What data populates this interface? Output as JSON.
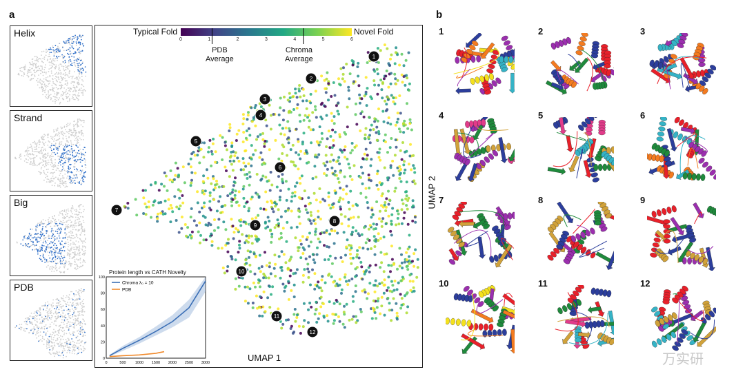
{
  "panel_a_label": "a",
  "panel_b_label": "b",
  "mini_plots": [
    {
      "label": "Helix"
    },
    {
      "label": "Strand"
    },
    {
      "label": "Big"
    },
    {
      "label": "PDB"
    }
  ],
  "colorbar": {
    "left_label": "Typical Fold",
    "right_label": "Novel Fold",
    "ticks": [
      "0",
      "1",
      "2",
      "3",
      "4",
      "5",
      "6"
    ],
    "range": [
      0,
      6
    ],
    "colormap": "viridis"
  },
  "annotations": {
    "pdb_average": "PDB\nAverage",
    "pdb_average_value": 1.1,
    "chroma_average": "Chroma\nAverage",
    "chroma_average_value": 4.3
  },
  "axes": {
    "x_label": "UMAP 1",
    "y_label": "UMAP 2"
  },
  "markers": [
    "1",
    "2",
    "3",
    "4",
    "5",
    "6",
    "7",
    "8",
    "9",
    "10",
    "11",
    "12"
  ],
  "chart_data": {
    "type": "line",
    "title": "Protein length vs CATH Novelty",
    "xlabel": "",
    "ylabel": "",
    "xlim": [
      0,
      3000
    ],
    "ylim": [
      0,
      100
    ],
    "x_ticks": [
      "0",
      "500",
      "1000",
      "1500",
      "2000",
      "2500",
      "3000"
    ],
    "y_ticks": [
      "0",
      "20",
      "40",
      "60",
      "80",
      "100"
    ],
    "series": [
      {
        "name": "Chroma λ₀ = 10",
        "color": "#3b6fb6",
        "x": [
          100,
          500,
          1000,
          1500,
          2000,
          2500,
          3000
        ],
        "y": [
          3,
          12,
          22,
          33,
          45,
          62,
          95
        ],
        "band_lower": [
          2,
          9,
          18,
          28,
          38,
          50,
          82
        ],
        "band_upper": [
          4,
          15,
          26,
          39,
          53,
          72,
          100
        ]
      },
      {
        "name": "PDB",
        "color": "#f08a2c",
        "x": [
          100,
          500,
          1000,
          1500,
          1750
        ],
        "y": [
          2,
          3,
          4,
          6,
          8
        ]
      }
    ]
  },
  "proteins": [
    {
      "num": "1"
    },
    {
      "num": "2"
    },
    {
      "num": "3"
    },
    {
      "num": "4"
    },
    {
      "num": "5"
    },
    {
      "num": "6"
    },
    {
      "num": "7"
    },
    {
      "num": "8"
    },
    {
      "num": "9"
    },
    {
      "num": "10"
    },
    {
      "num": "11"
    },
    {
      "num": "12"
    }
  ],
  "watermark": "万实研"
}
